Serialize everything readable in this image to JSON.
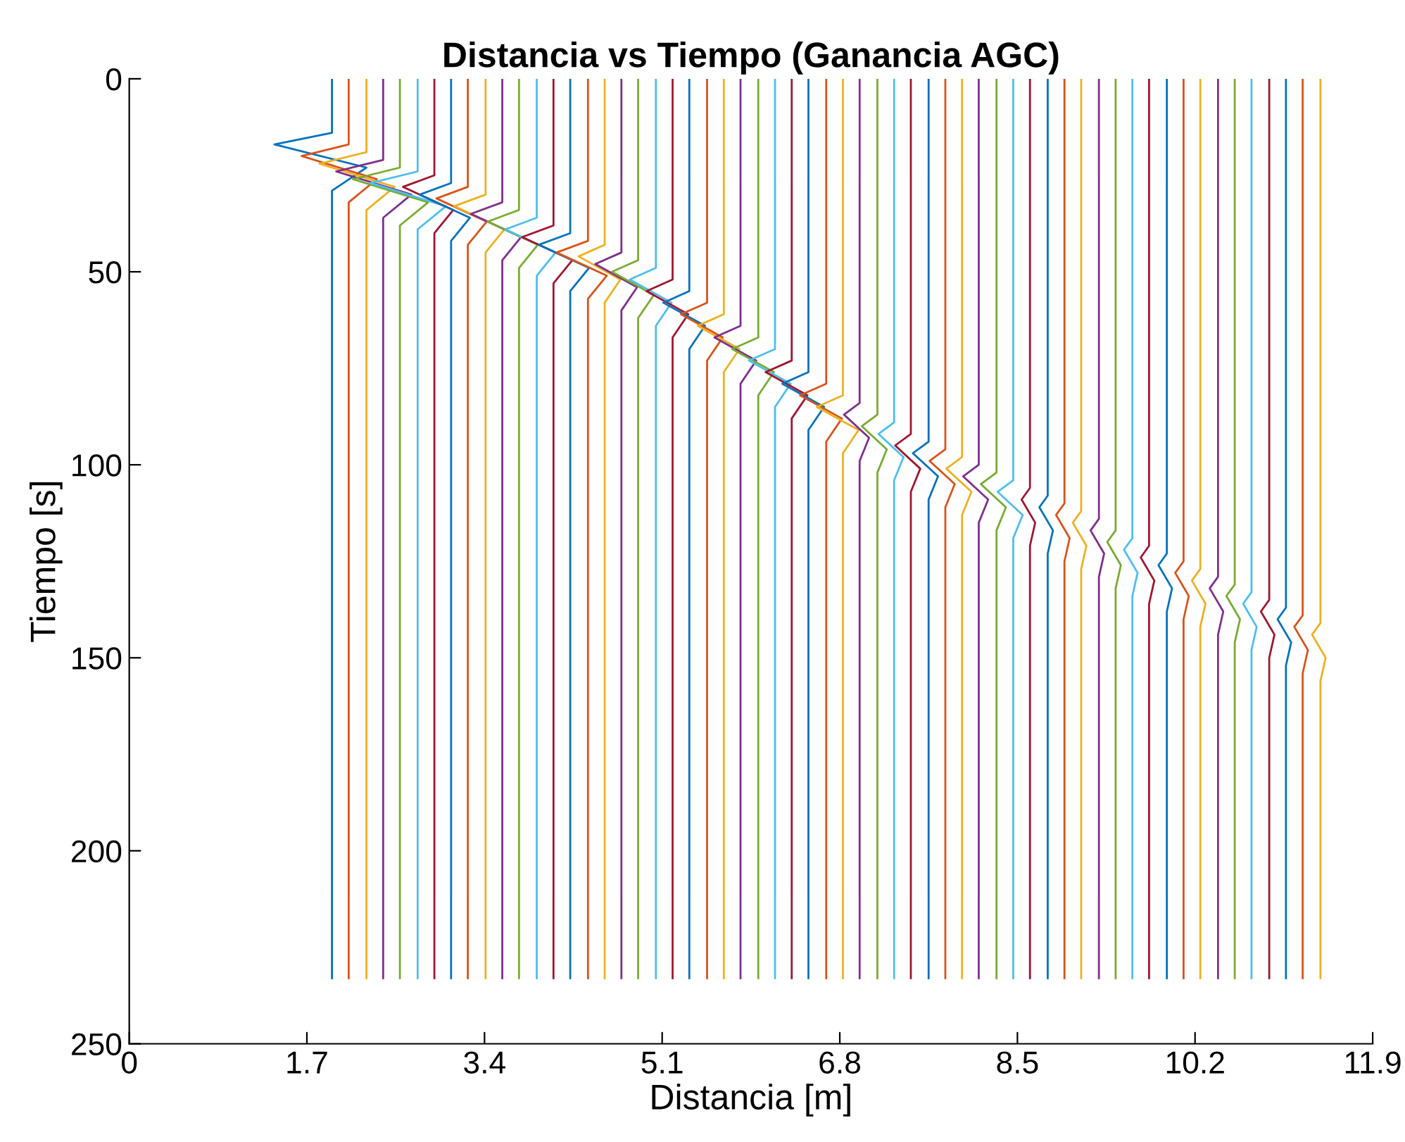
{
  "chart_data": {
    "type": "line",
    "title": "Distancia vs Tiempo (Ganancia AGC)",
    "xlabel": "Distancia [m]",
    "ylabel": "Tiempo [s]",
    "xlim": [
      0,
      11.9
    ],
    "xticks": [
      0,
      1.7,
      3.4,
      5.1,
      6.8,
      8.5,
      10.2,
      11.9
    ],
    "ylim": [
      250,
      0
    ],
    "yticks": [
      0,
      50,
      100,
      150,
      200,
      250
    ],
    "grid": false,
    "series": [
      {
        "color": "#0072bd",
        "x": [
          1.94,
          1.94,
          1.39,
          2.27,
          1.94,
          1.94
        ],
        "values": [
          0,
          14,
          17,
          23,
          29,
          233
        ]
      },
      {
        "color": "#d95319",
        "x": [
          2.1,
          2.1,
          1.65,
          2.37,
          2.1,
          2.1
        ],
        "values": [
          0,
          17,
          20,
          26,
          32,
          233
        ]
      },
      {
        "color": "#edb120",
        "x": [
          2.27,
          2.27,
          1.82,
          2.54,
          2.27,
          2.27
        ],
        "values": [
          0,
          19,
          22,
          28,
          34,
          233
        ]
      },
      {
        "color": "#7e2f8e",
        "x": [
          2.43,
          2.43,
          1.98,
          2.7,
          2.43,
          2.43
        ],
        "values": [
          0,
          21,
          24,
          30,
          36,
          233
        ]
      },
      {
        "color": "#77ac30",
        "x": [
          2.59,
          2.59,
          2.14,
          2.86,
          2.59,
          2.59
        ],
        "values": [
          0,
          23,
          26,
          32,
          38,
          233
        ]
      },
      {
        "color": "#4dbeee",
        "x": [
          2.76,
          2.76,
          2.31,
          3.03,
          2.76,
          2.76
        ],
        "values": [
          0,
          24,
          27,
          33,
          39,
          233
        ]
      },
      {
        "color": "#a2142f",
        "x": [
          2.92,
          2.92,
          2.62,
          3.1,
          2.92,
          2.92
        ],
        "values": [
          0,
          25,
          28,
          34,
          40,
          233
        ]
      },
      {
        "color": "#0072bd",
        "x": [
          3.08,
          3.08,
          2.78,
          3.26,
          3.08,
          3.08
        ],
        "values": [
          0,
          27,
          30,
          36,
          42,
          233
        ]
      },
      {
        "color": "#d95319",
        "x": [
          3.24,
          3.24,
          2.94,
          3.42,
          3.24,
          3.24
        ],
        "values": [
          0,
          28,
          31,
          37,
          43,
          233
        ]
      },
      {
        "color": "#edb120",
        "x": [
          3.41,
          3.41,
          3.11,
          3.59,
          3.41,
          3.41
        ],
        "values": [
          0,
          30,
          33,
          39,
          45,
          233
        ]
      },
      {
        "color": "#7e2f8e",
        "x": [
          3.57,
          3.57,
          3.27,
          3.75,
          3.57,
          3.57
        ],
        "values": [
          0,
          32,
          35,
          41,
          47,
          233
        ]
      },
      {
        "color": "#77ac30",
        "x": [
          3.73,
          3.73,
          3.43,
          3.91,
          3.73,
          3.73
        ],
        "values": [
          0,
          34,
          37,
          43,
          49,
          233
        ]
      },
      {
        "color": "#4dbeee",
        "x": [
          3.9,
          3.9,
          3.6,
          4.08,
          3.9,
          3.9
        ],
        "values": [
          0,
          36,
          39,
          45,
          51,
          233
        ]
      },
      {
        "color": "#a2142f",
        "x": [
          4.06,
          4.06,
          3.76,
          4.24,
          4.06,
          4.06
        ],
        "values": [
          0,
          38,
          41,
          47,
          53,
          233
        ]
      },
      {
        "color": "#0072bd",
        "x": [
          4.22,
          4.22,
          3.92,
          4.4,
          4.22,
          4.22
        ],
        "values": [
          0,
          40,
          43,
          49,
          55,
          233
        ]
      },
      {
        "color": "#d95319",
        "x": [
          4.39,
          4.39,
          4.09,
          4.57,
          4.39,
          4.39
        ],
        "values": [
          0,
          42,
          45,
          51,
          57,
          233
        ]
      },
      {
        "color": "#edb120",
        "x": [
          4.55,
          4.55,
          4.3,
          4.7,
          4.55,
          4.55
        ],
        "values": [
          0,
          43,
          46,
          52,
          58,
          233
        ]
      },
      {
        "color": "#7e2f8e",
        "x": [
          4.71,
          4.71,
          4.46,
          4.86,
          4.71,
          4.71
        ],
        "values": [
          0,
          45,
          48,
          54,
          60,
          233
        ]
      },
      {
        "color": "#77ac30",
        "x": [
          4.87,
          4.87,
          4.62,
          5.02,
          4.87,
          4.87
        ],
        "values": [
          0,
          47,
          50,
          56,
          62,
          233
        ]
      },
      {
        "color": "#4dbeee",
        "x": [
          5.04,
          5.04,
          4.79,
          5.19,
          5.04,
          5.04
        ],
        "values": [
          0,
          49,
          52,
          58,
          64,
          233
        ]
      },
      {
        "color": "#a2142f",
        "x": [
          5.2,
          5.2,
          4.95,
          5.35,
          5.2,
          5.2
        ],
        "values": [
          0,
          52,
          55,
          61,
          67,
          233
        ]
      },
      {
        "color": "#0072bd",
        "x": [
          5.36,
          5.36,
          5.11,
          5.51,
          5.36,
          5.36
        ],
        "values": [
          0,
          55,
          58,
          64,
          70,
          233
        ]
      },
      {
        "color": "#d95319",
        "x": [
          5.53,
          5.53,
          5.28,
          5.68,
          5.53,
          5.53
        ],
        "values": [
          0,
          58,
          61,
          67,
          73,
          233
        ]
      },
      {
        "color": "#edb120",
        "x": [
          5.69,
          5.69,
          5.44,
          5.84,
          5.69,
          5.69
        ],
        "values": [
          0,
          61,
          64,
          70,
          76,
          233
        ]
      },
      {
        "color": "#7e2f8e",
        "x": [
          5.85,
          5.85,
          5.6,
          6.0,
          5.85,
          5.85
        ],
        "values": [
          0,
          64,
          67,
          73,
          79,
          233
        ]
      },
      {
        "color": "#77ac30",
        "x": [
          6.02,
          6.02,
          5.77,
          6.17,
          6.02,
          6.02
        ],
        "values": [
          0,
          67,
          70,
          76,
          82,
          233
        ]
      },
      {
        "color": "#4dbeee",
        "x": [
          6.18,
          6.18,
          5.93,
          6.33,
          6.18,
          6.18
        ],
        "values": [
          0,
          70,
          73,
          79,
          85,
          233
        ]
      },
      {
        "color": "#a2142f",
        "x": [
          6.34,
          6.34,
          6.09,
          6.49,
          6.34,
          6.34
        ],
        "values": [
          0,
          73,
          76,
          82,
          88,
          233
        ]
      },
      {
        "color": "#0072bd",
        "x": [
          6.5,
          6.5,
          6.25,
          6.65,
          6.5,
          6.5
        ],
        "values": [
          0,
          76,
          79,
          85,
          91,
          233
        ]
      },
      {
        "color": "#d95319",
        "x": [
          6.67,
          6.67,
          6.42,
          6.82,
          6.67,
          6.67
        ],
        "values": [
          0,
          79,
          82,
          88,
          94,
          233
        ]
      },
      {
        "color": "#edb120",
        "x": [
          6.83,
          6.83,
          6.58,
          6.98,
          6.83,
          6.83
        ],
        "values": [
          0,
          82,
          85,
          91,
          97,
          233
        ]
      },
      {
        "color": "#7e2f8e",
        "x": [
          6.99,
          6.99,
          6.84,
          7.08,
          6.99,
          6.99
        ],
        "values": [
          0,
          84,
          87,
          93,
          99,
          233
        ]
      },
      {
        "color": "#77ac30",
        "x": [
          7.16,
          7.16,
          7.01,
          7.25,
          7.16,
          7.16
        ],
        "values": [
          0,
          87,
          90,
          96,
          102,
          233
        ]
      },
      {
        "color": "#4dbeee",
        "x": [
          7.32,
          7.32,
          7.17,
          7.41,
          7.32,
          7.32
        ],
        "values": [
          0,
          89,
          92,
          98,
          104,
          233
        ]
      },
      {
        "color": "#a2142f",
        "x": [
          7.48,
          7.48,
          7.33,
          7.57,
          7.48,
          7.48
        ],
        "values": [
          0,
          92,
          95,
          101,
          107,
          233
        ]
      },
      {
        "color": "#0072bd",
        "x": [
          7.65,
          7.65,
          7.5,
          7.74,
          7.65,
          7.65
        ],
        "values": [
          0,
          94,
          97,
          103,
          109,
          233
        ]
      },
      {
        "color": "#d95319",
        "x": [
          7.81,
          7.81,
          7.66,
          7.9,
          7.81,
          7.81
        ],
        "values": [
          0,
          96,
          99,
          105,
          111,
          233
        ]
      },
      {
        "color": "#edb120",
        "x": [
          7.97,
          7.97,
          7.82,
          8.06,
          7.97,
          7.97
        ],
        "values": [
          0,
          98,
          101,
          107,
          113,
          233
        ]
      },
      {
        "color": "#7e2f8e",
        "x": [
          8.13,
          8.13,
          7.98,
          8.22,
          8.13,
          8.13
        ],
        "values": [
          0,
          100,
          103,
          109,
          115,
          233
        ]
      },
      {
        "color": "#77ac30",
        "x": [
          8.3,
          8.3,
          8.15,
          8.39,
          8.3,
          8.3
        ],
        "values": [
          0,
          102,
          105,
          111,
          117,
          233
        ]
      },
      {
        "color": "#4dbeee",
        "x": [
          8.46,
          8.46,
          8.31,
          8.55,
          8.46,
          8.46
        ],
        "values": [
          0,
          104,
          107,
          113,
          119,
          233
        ]
      },
      {
        "color": "#a2142f",
        "x": [
          8.62,
          8.62,
          8.54,
          8.67,
          8.62,
          8.62
        ],
        "values": [
          0,
          106,
          109,
          115,
          121,
          233
        ]
      },
      {
        "color": "#0072bd",
        "x": [
          8.79,
          8.79,
          8.71,
          8.84,
          8.79,
          8.79
        ],
        "values": [
          0,
          108,
          111,
          117,
          123,
          233
        ]
      },
      {
        "color": "#d95319",
        "x": [
          8.95,
          8.95,
          8.87,
          9.0,
          8.95,
          8.95
        ],
        "values": [
          0,
          110,
          113,
          119,
          125,
          233
        ]
      },
      {
        "color": "#edb120",
        "x": [
          9.11,
          9.11,
          9.03,
          9.16,
          9.11,
          9.11
        ],
        "values": [
          0,
          112,
          115,
          121,
          127,
          233
        ]
      },
      {
        "color": "#7e2f8e",
        "x": [
          9.28,
          9.28,
          9.2,
          9.33,
          9.28,
          9.28
        ],
        "values": [
          0,
          114,
          117,
          123,
          129,
          233
        ]
      },
      {
        "color": "#77ac30",
        "x": [
          9.44,
          9.44,
          9.36,
          9.49,
          9.44,
          9.44
        ],
        "values": [
          0,
          117,
          120,
          126,
          132,
          233
        ]
      },
      {
        "color": "#4dbeee",
        "x": [
          9.6,
          9.6,
          9.52,
          9.65,
          9.6,
          9.6
        ],
        "values": [
          0,
          119,
          122,
          128,
          134,
          233
        ]
      },
      {
        "color": "#a2142f",
        "x": [
          9.76,
          9.76,
          9.68,
          9.81,
          9.76,
          9.76
        ],
        "values": [
          0,
          121,
          124,
          130,
          136,
          233
        ]
      },
      {
        "color": "#0072bd",
        "x": [
          9.93,
          9.93,
          9.85,
          9.98,
          9.93,
          9.93
        ],
        "values": [
          0,
          123,
          126,
          132,
          138,
          233
        ]
      },
      {
        "color": "#d95319",
        "x": [
          10.09,
          10.09,
          10.01,
          10.14,
          10.09,
          10.09
        ],
        "values": [
          0,
          125,
          128,
          134,
          140,
          233
        ]
      },
      {
        "color": "#edb120",
        "x": [
          10.25,
          10.25,
          10.17,
          10.3,
          10.25,
          10.25
        ],
        "values": [
          0,
          127,
          130,
          136,
          142,
          233
        ]
      },
      {
        "color": "#7e2f8e",
        "x": [
          10.42,
          10.42,
          10.34,
          10.47,
          10.42,
          10.42
        ],
        "values": [
          0,
          129,
          132,
          138,
          144,
          233
        ]
      },
      {
        "color": "#77ac30",
        "x": [
          10.58,
          10.58,
          10.5,
          10.63,
          10.58,
          10.58
        ],
        "values": [
          0,
          131,
          134,
          140,
          146,
          233
        ]
      },
      {
        "color": "#4dbeee",
        "x": [
          10.74,
          10.74,
          10.66,
          10.79,
          10.74,
          10.74
        ],
        "values": [
          0,
          133,
          136,
          142,
          148,
          233
        ]
      },
      {
        "color": "#a2142f",
        "x": [
          10.91,
          10.91,
          10.83,
          10.96,
          10.91,
          10.91
        ],
        "values": [
          0,
          135,
          138,
          144,
          150,
          233
        ]
      },
      {
        "color": "#0072bd",
        "x": [
          11.07,
          11.07,
          10.99,
          11.12,
          11.07,
          11.07
        ],
        "values": [
          0,
          137,
          140,
          146,
          152,
          233
        ]
      },
      {
        "color": "#d95319",
        "x": [
          11.23,
          11.23,
          11.15,
          11.28,
          11.23,
          11.23
        ],
        "values": [
          0,
          139,
          142,
          148,
          154,
          233
        ]
      },
      {
        "color": "#edb120",
        "x": [
          11.4,
          11.4,
          11.32,
          11.45,
          11.4,
          11.4
        ],
        "values": [
          0,
          141,
          144,
          150,
          156,
          233
        ]
      }
    ]
  }
}
